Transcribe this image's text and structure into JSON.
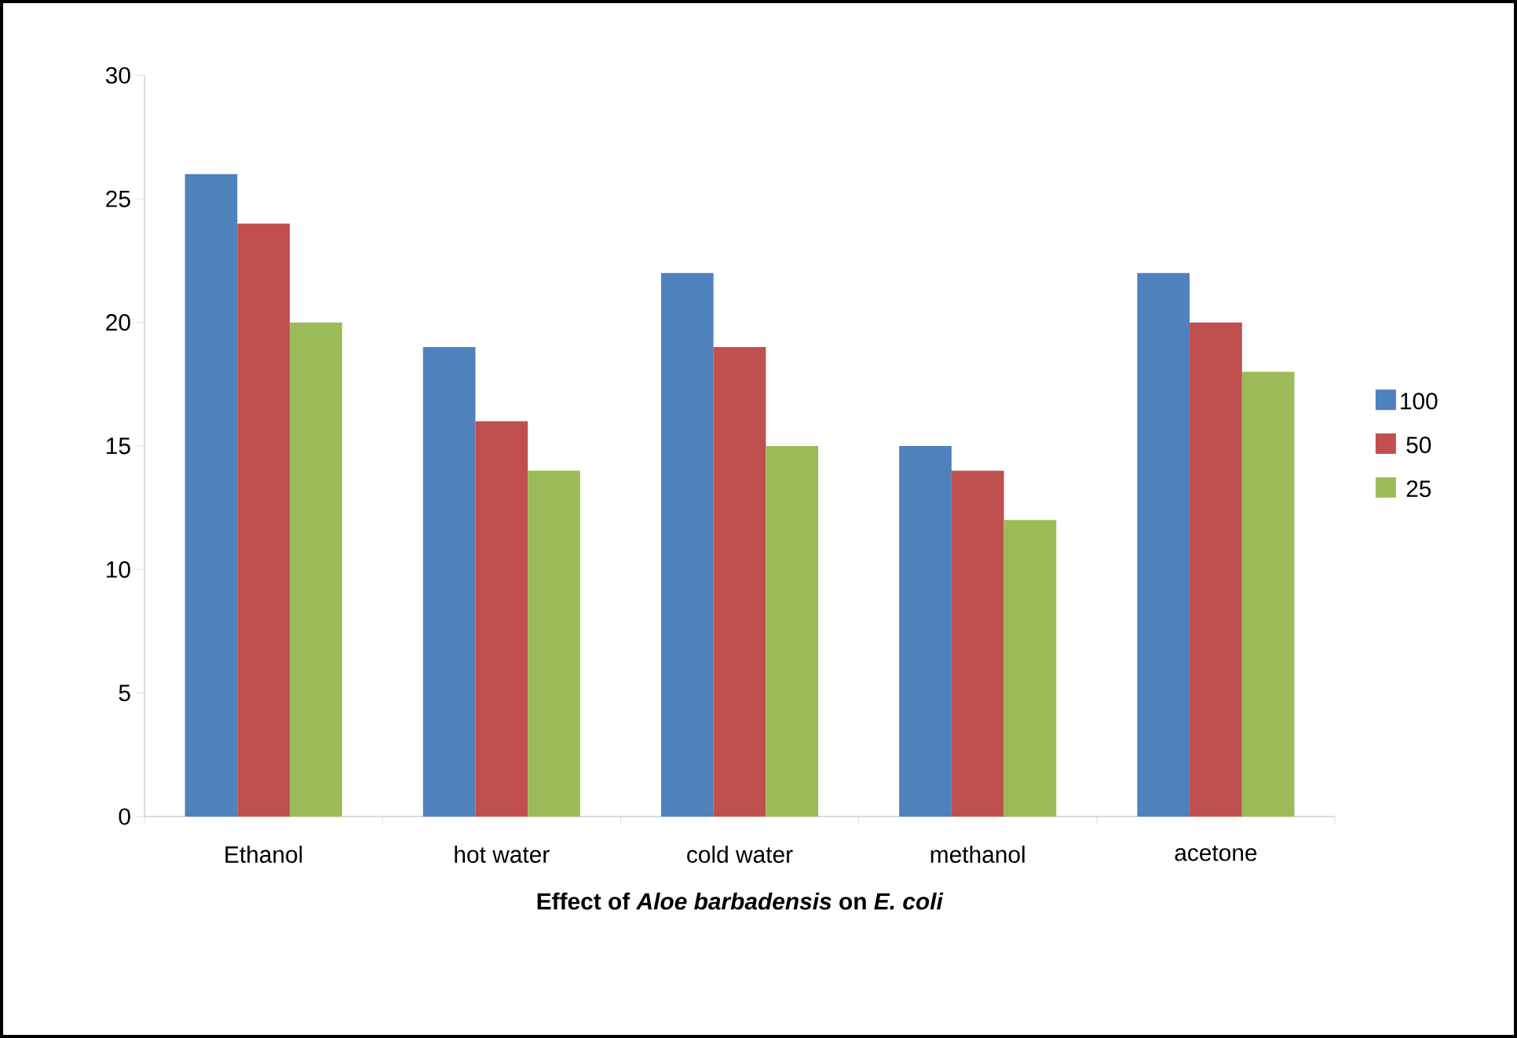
{
  "chart_data": {
    "type": "bar",
    "xlabel": "Effect of *Aloe barbadensis* on *E. coli*",
    "categories": [
      "Ethanol",
      "hot water",
      "cold water",
      "methanol",
      "acetone"
    ],
    "series": [
      {
        "name": "100",
        "color": "#4f81bd",
        "values": [
          26,
          19,
          22,
          15,
          22
        ]
      },
      {
        "name": "50",
        "color": "#c0504d",
        "values": [
          24,
          16,
          19,
          14,
          20
        ]
      },
      {
        "name": "25",
        "color": "#9bbb59",
        "values": [
          20,
          14,
          15,
          12,
          18
        ]
      }
    ],
    "ylim": [
      0,
      30
    ],
    "yticks": [
      0,
      5,
      10,
      15,
      20,
      25,
      30
    ],
    "grid": false,
    "legend": "right"
  }
}
